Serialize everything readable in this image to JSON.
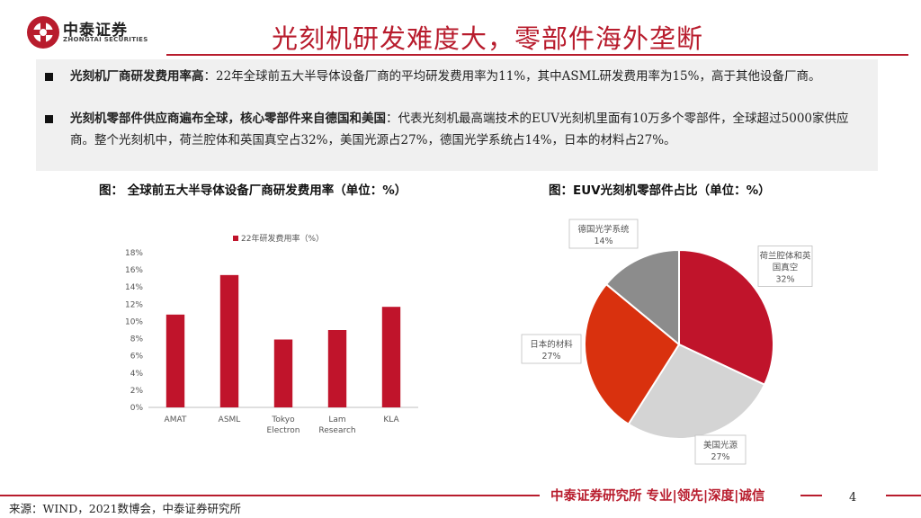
{
  "brand": {
    "name_cn": "中泰证券",
    "name_en": "ZHONGTAI SECURITIES",
    "color": "#b81c2d"
  },
  "page_title": "光刻机研发难度大，零部件海外垄断",
  "summary": {
    "bullet1_bold": "光刻机厂商研发费用率高",
    "bullet1_text": "：22年全球前五大半导体设备厂商的平均研发费用率为11%，其中ASML研发费用率为15%，高于其他设备厂商。",
    "bullet2_bold": "光刻机零部件供应商遍布全球，核心零部件来自德国和美国",
    "bullet2_text": "：代表光刻机最高端技术的EUV光刻机里面有10万多个零部件，全球超过5000家供应商。整个光刻机中，荷兰腔体和英国真空占32%，美国光源占27%，德国光学系统占14%，日本的材料占27%。"
  },
  "captions": {
    "left": "图：  全球前五大半导体设备厂商研发费用率（单位：%）",
    "right": "图：EUV光刻机零部件占比（单位：%）"
  },
  "chart_data": [
    {
      "type": "bar",
      "categories": [
        "AMAT",
        "ASML",
        "Tokyo Electron",
        "Lam Research",
        "KLA"
      ],
      "category_lines": [
        [
          "AMAT"
        ],
        [
          "ASML"
        ],
        [
          "Tokyo",
          "Electron"
        ],
        [
          "Lam",
          "Research"
        ],
        [
          "KLA"
        ]
      ],
      "series": [
        {
          "name": "22年研发费用率（%）",
          "values": [
            10.8,
            15.4,
            7.9,
            9.0,
            11.7
          ],
          "color": "#c0142b"
        }
      ],
      "ylim": [
        0,
        18
      ],
      "yticks": [
        0,
        2,
        4,
        6,
        8,
        10,
        12,
        14,
        16,
        18
      ],
      "ytick_labels": [
        "0%",
        "2%",
        "4%",
        "6%",
        "8%",
        "10%",
        "12%",
        "14%",
        "16%",
        "18%"
      ],
      "grid": false,
      "legend": "top"
    },
    {
      "type": "pie",
      "slices": [
        {
          "label_lines": [
            "荷兰腔体和英",
            "国真空"
          ],
          "label": "荷兰腔体和英国真空",
          "pct_text": "32%",
          "value": 32,
          "color": "#c0142b"
        },
        {
          "label_lines": [
            "美国光源"
          ],
          "label": "美国光源",
          "pct_text": "27%",
          "value": 27,
          "color": "#d4d4d4"
        },
        {
          "label_lines": [
            "日本的材料"
          ],
          "label": "日本的材料",
          "pct_text": "27%",
          "value": 27,
          "color": "#d9310e"
        },
        {
          "label_lines": [
            "德国光学系统"
          ],
          "label": "德国光学系统",
          "pct_text": "14%",
          "value": 14,
          "color": "#8c8c8c"
        }
      ]
    }
  ],
  "footer": {
    "brand_line": "中泰证券研究所 专业|领先|深度|诚信",
    "page_number": "4",
    "source": "来源：WIND，2021数博会，中泰证券研究所"
  }
}
